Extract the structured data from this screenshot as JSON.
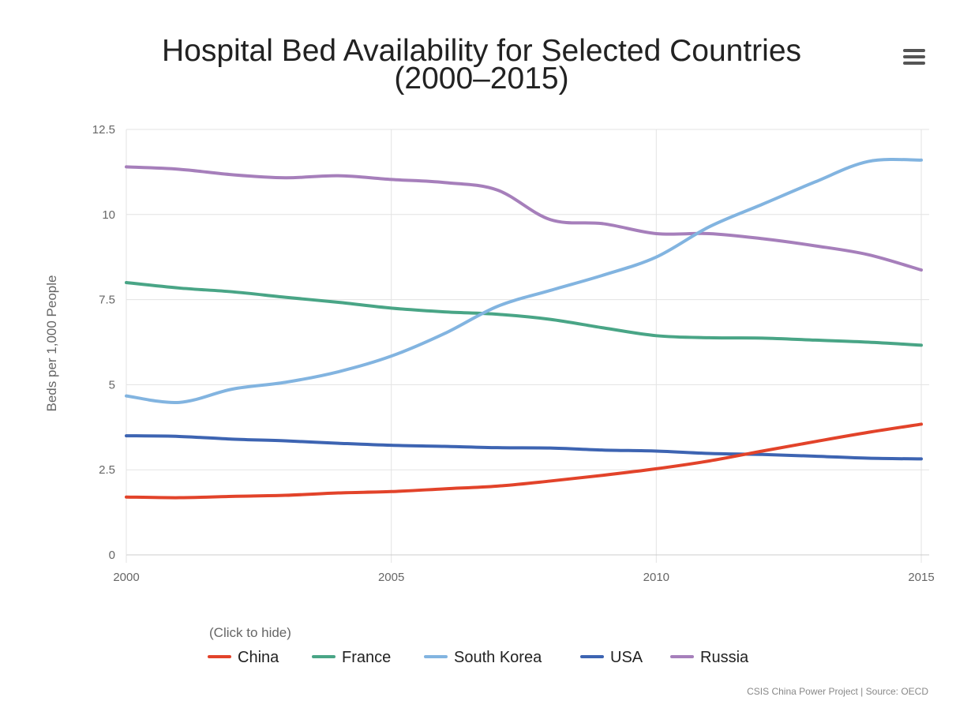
{
  "chart_data": {
    "type": "line",
    "title_line1": "Hospital Bed Availability for Selected Countries",
    "title_line2": "(2000–2015)",
    "ylabel": "Beds per 1,000 People",
    "xlabel": "",
    "xlim": [
      2000,
      2015
    ],
    "ylim": [
      0,
      12.5
    ],
    "x_ticks": [
      "2000",
      "2005",
      "2010",
      "2015"
    ],
    "y_ticks": [
      "0",
      "2.5",
      "5",
      "7.5",
      "10",
      "12.5"
    ],
    "grid": true,
    "legend_position": "bottom",
    "legend_hint": "(Click to hide)",
    "credit": "CSIS China Power Project | Source: OECD",
    "x": [
      2000,
      2001,
      2002,
      2003,
      2004,
      2005,
      2006,
      2007,
      2008,
      2009,
      2010,
      2011,
      2012,
      2013,
      2014,
      2015
    ],
    "series": [
      {
        "name": "China",
        "color": "#e2432a",
        "values": [
          1.7,
          1.68,
          1.72,
          1.75,
          1.82,
          1.86,
          1.94,
          2.02,
          2.17,
          2.34,
          2.53,
          2.76,
          3.05,
          3.33,
          3.6,
          3.84
        ]
      },
      {
        "name": "France",
        "color": "#49a586",
        "values": [
          8.0,
          7.84,
          7.73,
          7.57,
          7.42,
          7.25,
          7.14,
          7.07,
          6.92,
          6.67,
          6.44,
          6.38,
          6.37,
          6.31,
          6.25,
          6.16
        ]
      },
      {
        "name": "South Korea",
        "color": "#82b4e0",
        "values": [
          4.67,
          4.48,
          4.87,
          5.07,
          5.38,
          5.84,
          6.5,
          7.3,
          7.77,
          8.22,
          8.75,
          9.64,
          10.3,
          10.96,
          11.56,
          11.6
        ]
      },
      {
        "name": "USA",
        "color": "#3d64b2",
        "values": [
          3.5,
          3.48,
          3.4,
          3.35,
          3.28,
          3.22,
          3.19,
          3.15,
          3.14,
          3.08,
          3.05,
          2.98,
          2.95,
          2.9,
          2.84,
          2.82
        ]
      },
      {
        "name": "Russia",
        "color": "#a67fbb",
        "values": [
          11.4,
          11.33,
          11.17,
          11.08,
          11.14,
          11.03,
          10.94,
          10.72,
          9.85,
          9.73,
          9.44,
          9.44,
          9.29,
          9.08,
          8.82,
          8.37
        ]
      }
    ]
  }
}
